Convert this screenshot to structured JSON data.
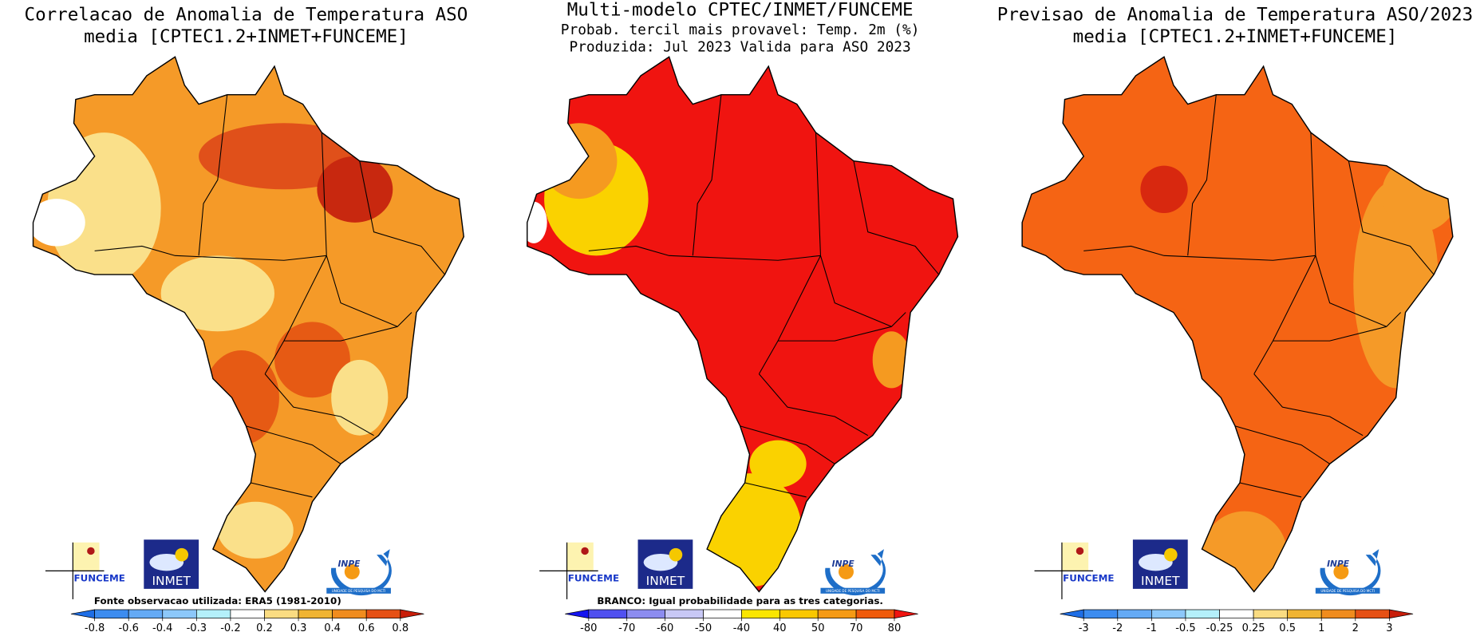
{
  "panels": [
    {
      "title_lines": [
        "Correlacao de Anomalia de Temperatura ASO",
        "media [CPTEC1.2+INMET+FUNCEME]"
      ],
      "note": "Fonte observacao utilizada: ERA5 (1981-2010)",
      "colorbar": [
        -0.8,
        -0.6,
        -0.4,
        -0.3,
        -0.2,
        0.2,
        0.3,
        0.4,
        0.6,
        0.8
      ],
      "logos": {
        "funceme": "FUNCEME",
        "inmet": "INMET",
        "inpe": "INPE",
        "inpe_sub": "UNIDADE DE PESQUISA DO MCTI"
      }
    },
    {
      "title_lines": [
        "Multi-modelo CPTEC/INMET/FUNCEME",
        "Probab. tercil mais provavel: Temp. 2m (%)",
        "Produzida: Jul 2023  Valida para ASO 2023"
      ],
      "note": "BRANCO: Igual probabilidade para as tres categorias.",
      "colorbar": [
        -80,
        -70,
        -60,
        -50,
        -40,
        40,
        50,
        70,
        80
      ],
      "logos": {
        "funceme": "FUNCEME",
        "inmet": "INMET",
        "inpe": "INPE",
        "inpe_sub": "UNIDADE DE PESQUISA DO MCTI"
      }
    },
    {
      "title_lines": [
        "Previsao de Anomalia de Temperatura ASO/2023",
        "media [CPTEC1.2+INMET+FUNCEME]"
      ],
      "colorbar": [
        -3,
        -2,
        -1,
        -0.5,
        -0.25,
        0.25,
        0.5,
        1,
        2,
        3
      ],
      "logos": {
        "funceme": "FUNCEME",
        "inmet": "INMET",
        "inpe": "INPE",
        "inpe_sub": "UNIDADE DE PESQUISA DO MCTI"
      }
    }
  ]
}
